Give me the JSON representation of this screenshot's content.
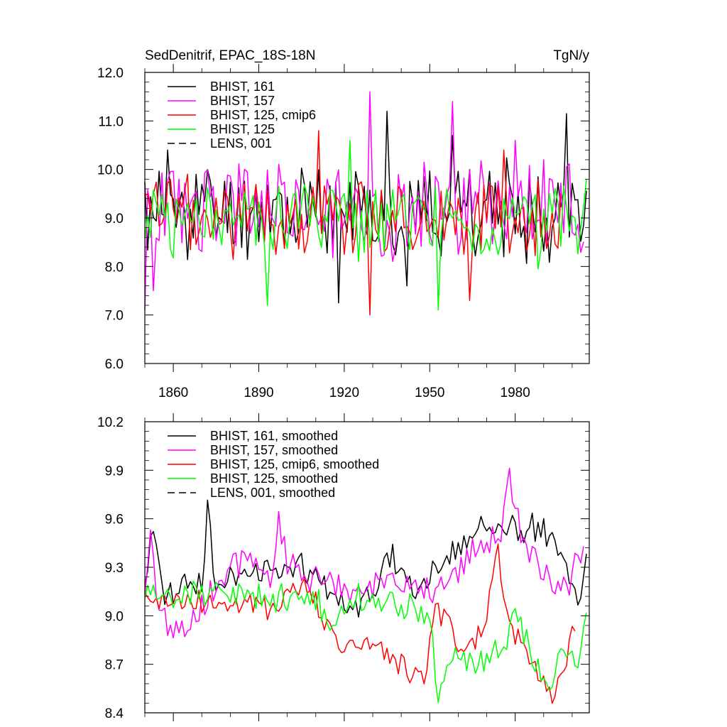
{
  "figure": {
    "title_left": "SedDenitrif, EPAC_18S-18N",
    "title_right": "TgN/y"
  },
  "chart_data": [
    {
      "type": "line",
      "title": "SedDenitrif, EPAC_18S-18N",
      "units": "TgN/y",
      "xlim": [
        1850,
        2006
      ],
      "ylim": [
        6.0,
        12.0
      ],
      "yticks": [
        "6.0",
        "7.0",
        "8.0",
        "9.0",
        "10.0",
        "11.0",
        "12.0"
      ],
      "xticks": [
        "1860",
        "1890",
        "1920",
        "1950",
        "1980"
      ],
      "xtick_values": [
        1860,
        1890,
        1920,
        1950,
        1980
      ],
      "legend_position": "top-left",
      "series": [
        {
          "name": "BHIST, 161",
          "color": "#000000",
          "dash": "solid",
          "start": 1850,
          "end": 2005,
          "mean": 9.15,
          "amp": 0.85,
          "seed": 11,
          "spikes": [
            [
              1858,
              10.4
            ],
            [
              1868,
              9.9
            ],
            [
              1872,
              10.0
            ],
            [
              1918,
              7.25
            ],
            [
              1935,
              11.2
            ],
            [
              1942,
              7.6
            ],
            [
              1958,
              10.7
            ],
            [
              1964,
              10.0
            ],
            [
              1998,
              11.15
            ]
          ]
        },
        {
          "name": "BHIST, 157",
          "color": "#ff00ff",
          "dash": "solid",
          "start": 1850,
          "end": 2004,
          "mean": 9.2,
          "amp": 0.9,
          "seed": 23,
          "spikes": [
            [
              1850,
              7.1
            ],
            [
              1853,
              7.5
            ],
            [
              1929,
              11.6
            ],
            [
              1958,
              11.4
            ],
            [
              1964,
              10.0
            ],
            [
              1980,
              10.6
            ],
            [
              1990,
              10.2
            ]
          ]
        },
        {
          "name": "BHIST, 125, cmip6",
          "color": "#ff0000",
          "dash": "solid",
          "start": 1850,
          "end": 1996,
          "mean": 9.05,
          "amp": 0.75,
          "seed": 37,
          "spikes": [
            [
              1911,
              10.8
            ],
            [
              1929,
              7.0
            ],
            [
              1964,
              7.3
            ],
            [
              1976,
              10.4
            ]
          ]
        },
        {
          "name": "BHIST, 125",
          "color": "#00ff00",
          "dash": "solid",
          "start": 1850,
          "end": 2005,
          "mean": 8.95,
          "amp": 0.7,
          "seed": 51,
          "spikes": [
            [
              1893,
              7.2
            ],
            [
              1922,
              10.6
            ],
            [
              1953,
              7.1
            ],
            [
              1988,
              7.95
            ],
            [
              2005,
              9.8
            ]
          ]
        },
        {
          "name": "LENS, 001",
          "color": "#000000",
          "dash": "dashed",
          "start": 1850,
          "end": 1850,
          "mean": 9.0,
          "amp": 0.0,
          "seed": 1,
          "spikes": []
        }
      ]
    },
    {
      "type": "line",
      "title": "",
      "xlim": [
        1850,
        2006
      ],
      "ylim": [
        8.4,
        10.2
      ],
      "yticks": [
        "8.4",
        "8.7",
        "9.0",
        "9.3",
        "9.6",
        "9.9",
        "10.2"
      ],
      "xticks": [],
      "xtick_values": [
        1860,
        1890,
        1920,
        1950,
        1980
      ],
      "legend_position": "top-left",
      "series": [
        {
          "name": "BHIST, 161, smoothed",
          "color": "#000000",
          "dash": "solid",
          "start": 1850,
          "end": 2005,
          "seed": 13,
          "amp": 0.08,
          "trend": [
            [
              1850,
              9.15
            ],
            [
              1853,
              9.6
            ],
            [
              1856,
              9.15
            ],
            [
              1870,
              9.2
            ],
            [
              1872,
              9.7
            ],
            [
              1875,
              9.2
            ],
            [
              1900,
              9.3
            ],
            [
              1910,
              9.3
            ],
            [
              1918,
              9.1
            ],
            [
              1930,
              9.1
            ],
            [
              1935,
              9.4
            ],
            [
              1945,
              9.15
            ],
            [
              1950,
              9.2
            ],
            [
              1955,
              9.35
            ],
            [
              1960,
              9.4
            ],
            [
              1965,
              9.5
            ],
            [
              1970,
              9.6
            ],
            [
              1980,
              9.5
            ],
            [
              1990,
              9.55
            ],
            [
              1998,
              9.3
            ],
            [
              2002,
              9.05
            ],
            [
              2005,
              9.35
            ]
          ]
        },
        {
          "name": "BHIST, 157, smoothed",
          "color": "#ff00ff",
          "dash": "solid",
          "start": 1850,
          "end": 2004,
          "seed": 29,
          "amp": 0.08,
          "trend": [
            [
              1850,
              9.05
            ],
            [
              1852,
              9.45
            ],
            [
              1856,
              9.0
            ],
            [
              1862,
              8.9
            ],
            [
              1868,
              9.0
            ],
            [
              1880,
              9.3
            ],
            [
              1885,
              9.35
            ],
            [
              1895,
              9.2
            ],
            [
              1897,
              9.6
            ],
            [
              1900,
              9.3
            ],
            [
              1920,
              9.15
            ],
            [
              1935,
              9.2
            ],
            [
              1950,
              9.15
            ],
            [
              1960,
              9.3
            ],
            [
              1970,
              9.45
            ],
            [
              1975,
              9.5
            ],
            [
              1978,
              9.85
            ],
            [
              1982,
              9.5
            ],
            [
              1990,
              9.25
            ],
            [
              1998,
              9.15
            ],
            [
              2004,
              9.45
            ]
          ]
        },
        {
          "name": "BHIST, 125, cmip6, smoothed",
          "color": "#ff0000",
          "dash": "solid",
          "start": 1850,
          "end": 2001,
          "seed": 41,
          "amp": 0.07,
          "trend": [
            [
              1850,
              9.1
            ],
            [
              1895,
              9.05
            ],
            [
              1905,
              9.2
            ],
            [
              1915,
              8.95
            ],
            [
              1920,
              8.75
            ],
            [
              1928,
              8.85
            ],
            [
              1935,
              8.75
            ],
            [
              1940,
              8.7
            ],
            [
              1948,
              8.6
            ],
            [
              1952,
              9.0
            ],
            [
              1956,
              8.95
            ],
            [
              1960,
              8.8
            ],
            [
              1965,
              8.8
            ],
            [
              1970,
              9.0
            ],
            [
              1974,
              9.4
            ],
            [
              1977,
              9.0
            ],
            [
              1982,
              8.85
            ],
            [
              1987,
              8.7
            ],
            [
              1993,
              8.5
            ],
            [
              1998,
              8.7
            ],
            [
              2001,
              8.95
            ]
          ]
        },
        {
          "name": "BHIST, 125, smoothed",
          "color": "#00ff00",
          "dash": "solid",
          "start": 1850,
          "end": 2005,
          "seed": 57,
          "amp": 0.07,
          "trend": [
            [
              1850,
              9.1
            ],
            [
              1880,
              9.15
            ],
            [
              1900,
              9.1
            ],
            [
              1910,
              9.1
            ],
            [
              1915,
              8.95
            ],
            [
              1925,
              9.1
            ],
            [
              1940,
              9.05
            ],
            [
              1945,
              9.05
            ],
            [
              1950,
              8.95
            ],
            [
              1953,
              8.5
            ],
            [
              1958,
              8.8
            ],
            [
              1962,
              8.7
            ],
            [
              1968,
              8.7
            ],
            [
              1975,
              8.8
            ],
            [
              1980,
              9.0
            ],
            [
              1984,
              8.85
            ],
            [
              1992,
              8.5
            ],
            [
              1996,
              8.75
            ],
            [
              2002,
              8.7
            ],
            [
              2005,
              8.95
            ]
          ]
        },
        {
          "name": "LENS, 001, smoothed",
          "color": "#000000",
          "dash": "dashed",
          "start": 1850,
          "end": 1850,
          "seed": 2,
          "amp": 0.0,
          "trend": []
        }
      ]
    }
  ]
}
